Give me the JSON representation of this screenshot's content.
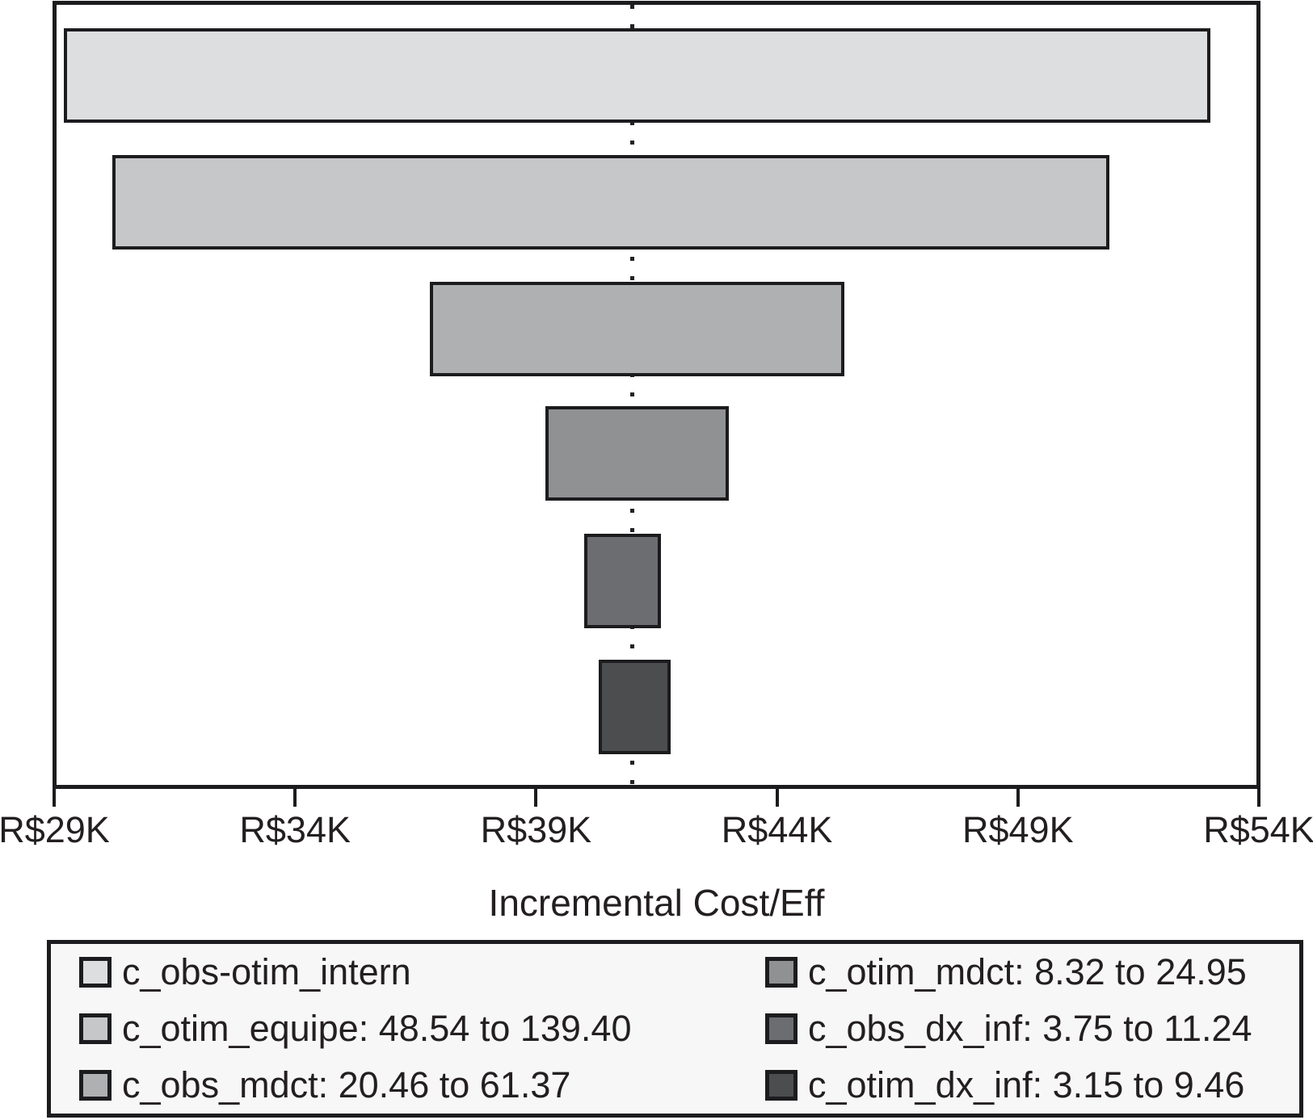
{
  "chart_data": {
    "type": "bar",
    "subtype": "tornado-sensitivity-diagram",
    "title": "",
    "xlabel": "Incremental Cost/Eff",
    "x_unit": "R$ thousands",
    "xlim": [
      29,
      54
    ],
    "grid": false,
    "legend_position": "bottom",
    "ev_line_value": 41.0,
    "x_ticks": [
      {
        "value": 29,
        "label": "R$29K"
      },
      {
        "value": 34,
        "label": "R$34K"
      },
      {
        "value": 39,
        "label": "R$39K"
      },
      {
        "value": 44,
        "label": "R$44K"
      },
      {
        "value": 49,
        "label": "R$49K"
      },
      {
        "value": 54,
        "label": "R$54K"
      }
    ],
    "bars": [
      {
        "name": "c_obs-otim_intern",
        "legend_label": "c_obs-otim_intern",
        "low": 29.2,
        "high": 53.0,
        "color": "#dcdee0"
      },
      {
        "name": "c_otim_equipe",
        "legend_label": "c_otim_equipe: 48.54 to 139.40",
        "param_low": 48.54,
        "param_high": 139.4,
        "low": 30.2,
        "high": 50.9,
        "color": "#c5c7c9"
      },
      {
        "name": "c_obs_mdct",
        "legend_label": "c_obs_mdct: 20.46 to 61.37",
        "param_low": 20.46,
        "param_high": 61.37,
        "low": 36.8,
        "high": 45.4,
        "color": "#aeb0b2"
      },
      {
        "name": "c_otim_mdct",
        "legend_label": "c_otim_mdct: 8.32 to 24.95",
        "param_low": 8.32,
        "param_high": 24.95,
        "low": 39.2,
        "high": 43.0,
        "color": "#8f9193"
      },
      {
        "name": "c_obs_dx_inf",
        "legend_label": "c_obs_dx_inf: 3.75 to 11.24",
        "param_low": 3.75,
        "param_high": 11.24,
        "low": 40.0,
        "high": 41.6,
        "color": "#6b6d70"
      },
      {
        "name": "c_otim_dx_inf",
        "legend_label": "c_otim_dx_inf: 3.15 to 9.46",
        "param_low": 3.15,
        "param_high": 9.46,
        "low": 40.3,
        "high": 41.8,
        "color": "#4b4d4f"
      }
    ]
  }
}
